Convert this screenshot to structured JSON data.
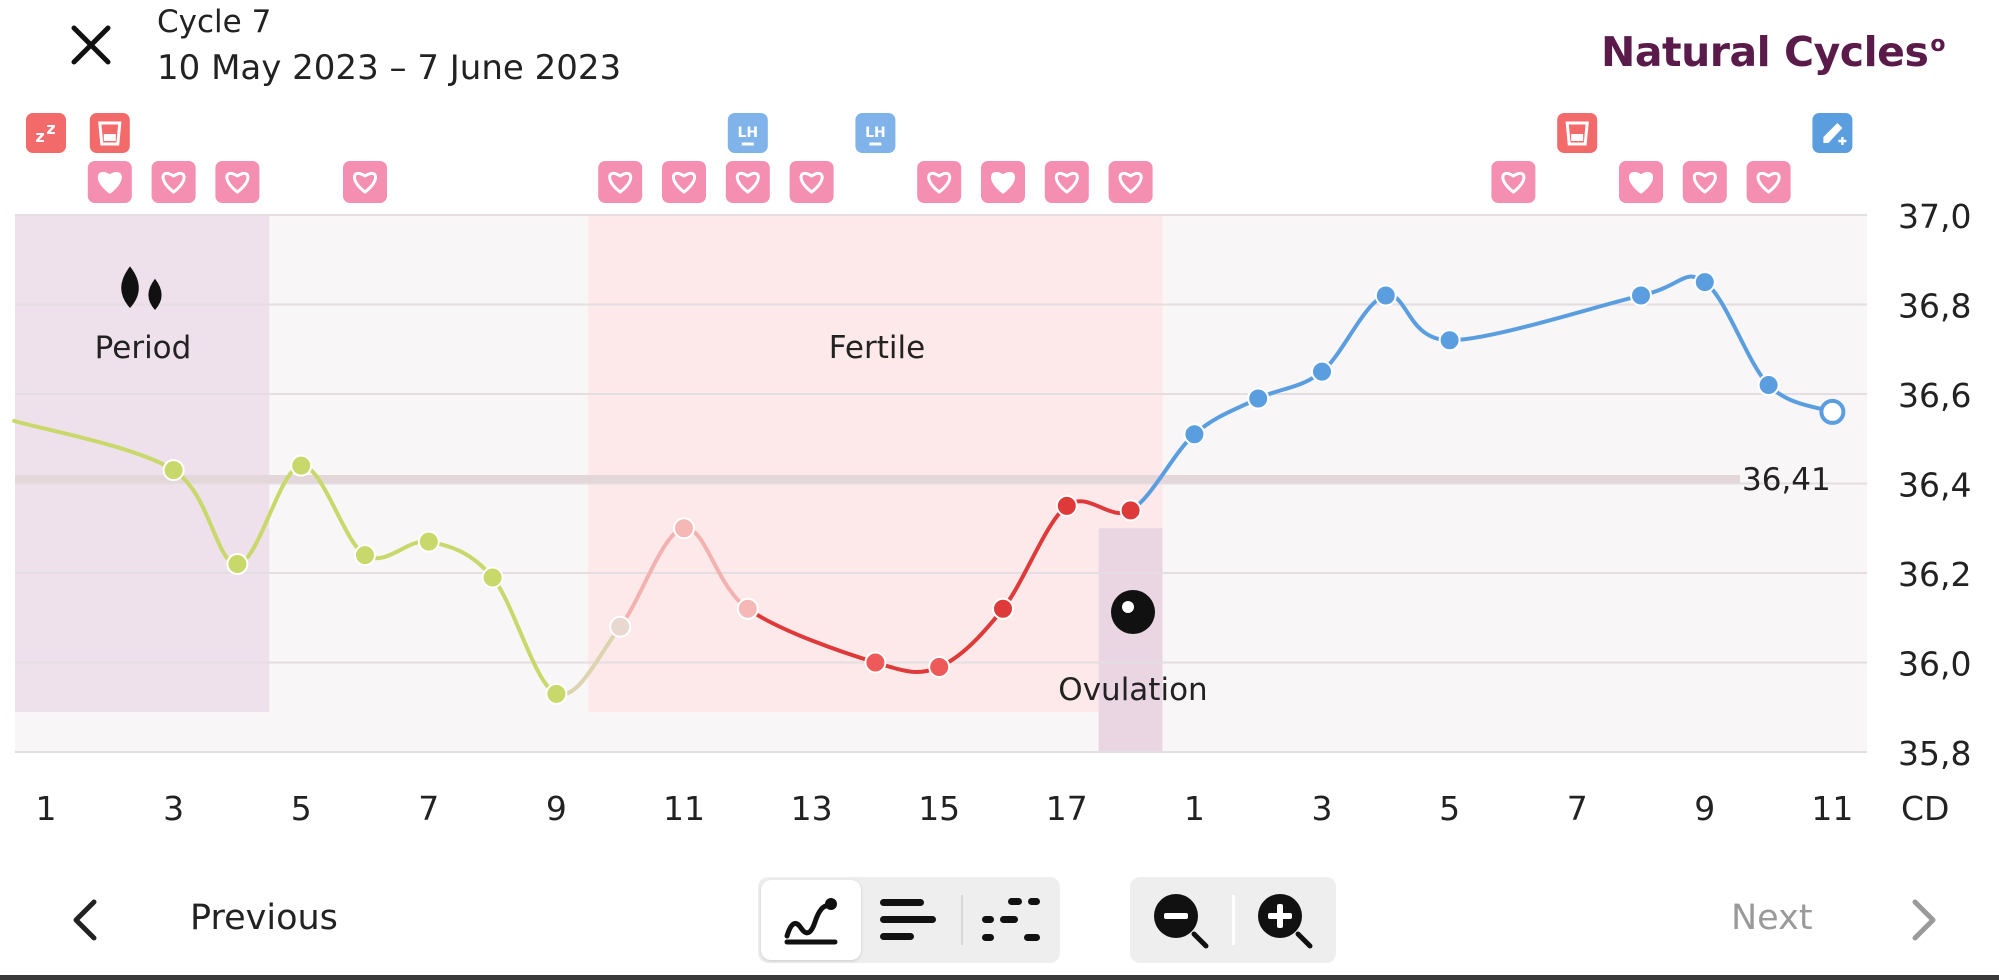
{
  "header": {
    "cycle_title": "Cycle 7",
    "date_range": "10 May 2023 – 7 June 2023",
    "brand_name": "Natural Cycles"
  },
  "chart_data": {
    "type": "line",
    "y_unit": "°C",
    "ylim": [
      35.8,
      37.0
    ],
    "y_ticks": [
      "37,0",
      "36,8",
      "36,6",
      "36,4",
      "36,2",
      "36,0",
      "35,8"
    ],
    "x_ticks": [
      "1",
      "3",
      "5",
      "7",
      "9",
      "11",
      "13",
      "15",
      "17",
      "1",
      "3",
      "5",
      "7",
      "9",
      "11"
    ],
    "x_axis_label": "CD",
    "coverline_label": "36,41",
    "coverline_value": 36.41,
    "phase_labels": {
      "period": "Period",
      "fertile": "Fertile",
      "ovulation": "Ovulation"
    },
    "phases": {
      "period": [
        1,
        4.5
      ],
      "fertile": [
        9.5,
        18.5
      ],
      "ovulation": [
        17.5,
        18.5
      ]
    },
    "series": [
      {
        "day": [
          3,
          4,
          5,
          6,
          7,
          8,
          9,
          10,
          11,
          12,
          14,
          15,
          16,
          17,
          18,
          19,
          20,
          21,
          22,
          23,
          26,
          27,
          28,
          29
        ],
        "temp": [
          36.43,
          36.22,
          36.44,
          36.24,
          36.27,
          36.19,
          35.93,
          36.08,
          36.3,
          36.12,
          36.0,
          35.99,
          36.12,
          36.35,
          36.34,
          36.51,
          36.59,
          36.65,
          36.82,
          36.72,
          36.82,
          36.85,
          36.62,
          36.56
        ],
        "open_last": true
      }
    ],
    "line_start": {
      "day": 0.5,
      "temp": 36.54
    },
    "colors": {
      "green": "#c8d86a",
      "light_pink": "#f3b1b1",
      "red": "#df3a3a",
      "blue": "#5b9ee0",
      "period_bg": "#efe1eb",
      "fertile_bg": "#fde9e9",
      "ovulation_bg": "#e9d6e2",
      "chart_bg": "#f8f6f7"
    }
  },
  "markers": {
    "top_row": [
      {
        "day": 1,
        "icon": "sleep-icon",
        "color": "#f26a6a"
      },
      {
        "day": 2,
        "icon": "test-cup-icon",
        "color": "#f26a6a"
      },
      {
        "day": 12,
        "icon": "lh-test-icon",
        "color": "#7fb3ea"
      },
      {
        "day": 14,
        "icon": "lh-test-icon",
        "color": "#7fb3ea"
      },
      {
        "day": 25,
        "icon": "test-cup-icon",
        "color": "#f26a6a"
      },
      {
        "day": 29,
        "icon": "edit-add-icon",
        "color": "#5b9ee0"
      }
    ],
    "heart_row": [
      {
        "day": 2,
        "filled": true
      },
      {
        "day": 3,
        "filled": false
      },
      {
        "day": 4,
        "filled": false
      },
      {
        "day": 6,
        "filled": false
      },
      {
        "day": 10,
        "filled": false
      },
      {
        "day": 11,
        "filled": false
      },
      {
        "day": 12,
        "filled": false
      },
      {
        "day": 13,
        "filled": false
      },
      {
        "day": 15,
        "filled": false
      },
      {
        "day": 16,
        "filled": true
      },
      {
        "day": 17,
        "filled": false
      },
      {
        "day": 18,
        "filled": false
      },
      {
        "day": 24,
        "filled": false
      },
      {
        "day": 26,
        "filled": true
      },
      {
        "day": 27,
        "filled": false
      },
      {
        "day": 28,
        "filled": false
      }
    ],
    "lh_label": "LH"
  },
  "toolbar": {
    "previous_label": "Previous",
    "next_label": "Next",
    "view_modes": [
      "graph-view-icon",
      "list-view-icon",
      "scatter-view-icon"
    ],
    "zoom": [
      "zoom-out-icon",
      "zoom-in-icon"
    ]
  }
}
